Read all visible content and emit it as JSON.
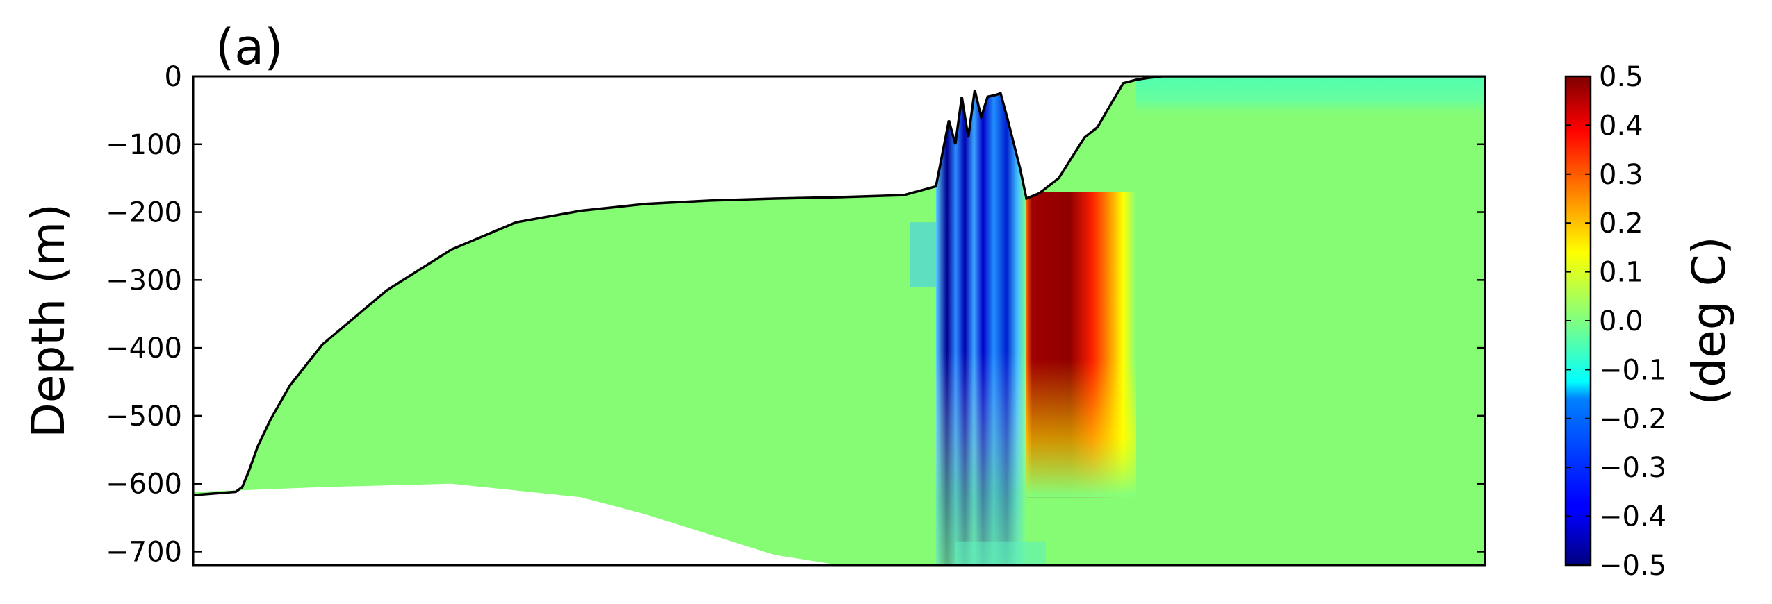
{
  "chart_data": {
    "type": "heatmap",
    "panel_label": "(a)",
    "ylabel": "Depth (m)",
    "xlabel": "",
    "ylim": [
      -720,
      0
    ],
    "yticks": [
      0,
      -100,
      -200,
      -300,
      -400,
      -500,
      -600,
      -700
    ],
    "ytick_labels": [
      "0",
      "−100",
      "−200",
      "−300",
      "−400",
      "−500",
      "−600",
      "−700"
    ],
    "x_axis_ticks": "none",
    "colorbar": {
      "label": "(deg C)",
      "colormap": "jet",
      "range": [
        -0.5,
        0.5
      ],
      "ticks": [
        0.5,
        0.4,
        0.3,
        0.2,
        0.1,
        0.0,
        -0.1,
        -0.2,
        -0.3,
        -0.4,
        -0.5
      ],
      "tick_labels": [
        "0.5",
        "0.4",
        "0.3",
        "0.2",
        "0.1",
        "0.0",
        "−0.1",
        "−0.2",
        "−0.3",
        "−0.4",
        "−0.5"
      ]
    },
    "background_anomaly": 0.02,
    "x_domain": [
      0,
      1
    ],
    "upper_boundary_depth": {
      "x": [
        0,
        0.033,
        0.038,
        0.043,
        0.05,
        0.06,
        0.075,
        0.1,
        0.15,
        0.2,
        0.25,
        0.3,
        0.35,
        0.4,
        0.45,
        0.5,
        0.55,
        0.575,
        0.585,
        0.59,
        0.595,
        0.6,
        0.605,
        0.61,
        0.615,
        0.62,
        0.625,
        0.63,
        0.64,
        0.645,
        0.655,
        0.67,
        0.68,
        0.69,
        0.7,
        0.71,
        0.72,
        0.73,
        0.74,
        0.75,
        0.76,
        0.77,
        0.78,
        0.79,
        0.8,
        0.81,
        1.0
      ],
      "depth": [
        -617,
        -612,
        -605,
        -582,
        -545,
        -505,
        -455,
        -395,
        -315,
        -255,
        -215,
        -198,
        -188,
        -183,
        -180,
        -178,
        -175,
        -162,
        -65,
        -100,
        -30,
        -90,
        -20,
        -60,
        -30,
        -28,
        -25,
        -60,
        -135,
        -180,
        -172,
        -150,
        -120,
        -90,
        -75,
        -42,
        -10,
        -5,
        -2,
        0,
        0,
        0,
        0,
        0,
        0,
        0,
        0
      ]
    },
    "lower_boundary_depth": {
      "x": [
        0,
        0.035,
        0.1,
        0.2,
        0.3,
        0.35,
        0.4,
        0.45,
        0.5
      ],
      "depth": [
        -612,
        -610,
        -605,
        -600,
        -620,
        -645,
        -675,
        -705,
        -720
      ]
    },
    "features": [
      {
        "name": "cold-banded-anomaly",
        "x_range": [
          0.575,
          0.645
        ],
        "depth_range": [
          -720,
          -20
        ],
        "peak_value": -0.5
      },
      {
        "name": "warm-core-anomaly",
        "x_range": [
          0.645,
          0.73
        ],
        "depth_range": [
          -620,
          -170
        ],
        "peak_value": 0.5
      },
      {
        "name": "near-surface-cool-layer",
        "x_range": [
          0.73,
          1.0
        ],
        "depth_range": [
          -60,
          0
        ],
        "peak_value": -0.08
      }
    ],
    "grid": false,
    "legend": "none"
  }
}
